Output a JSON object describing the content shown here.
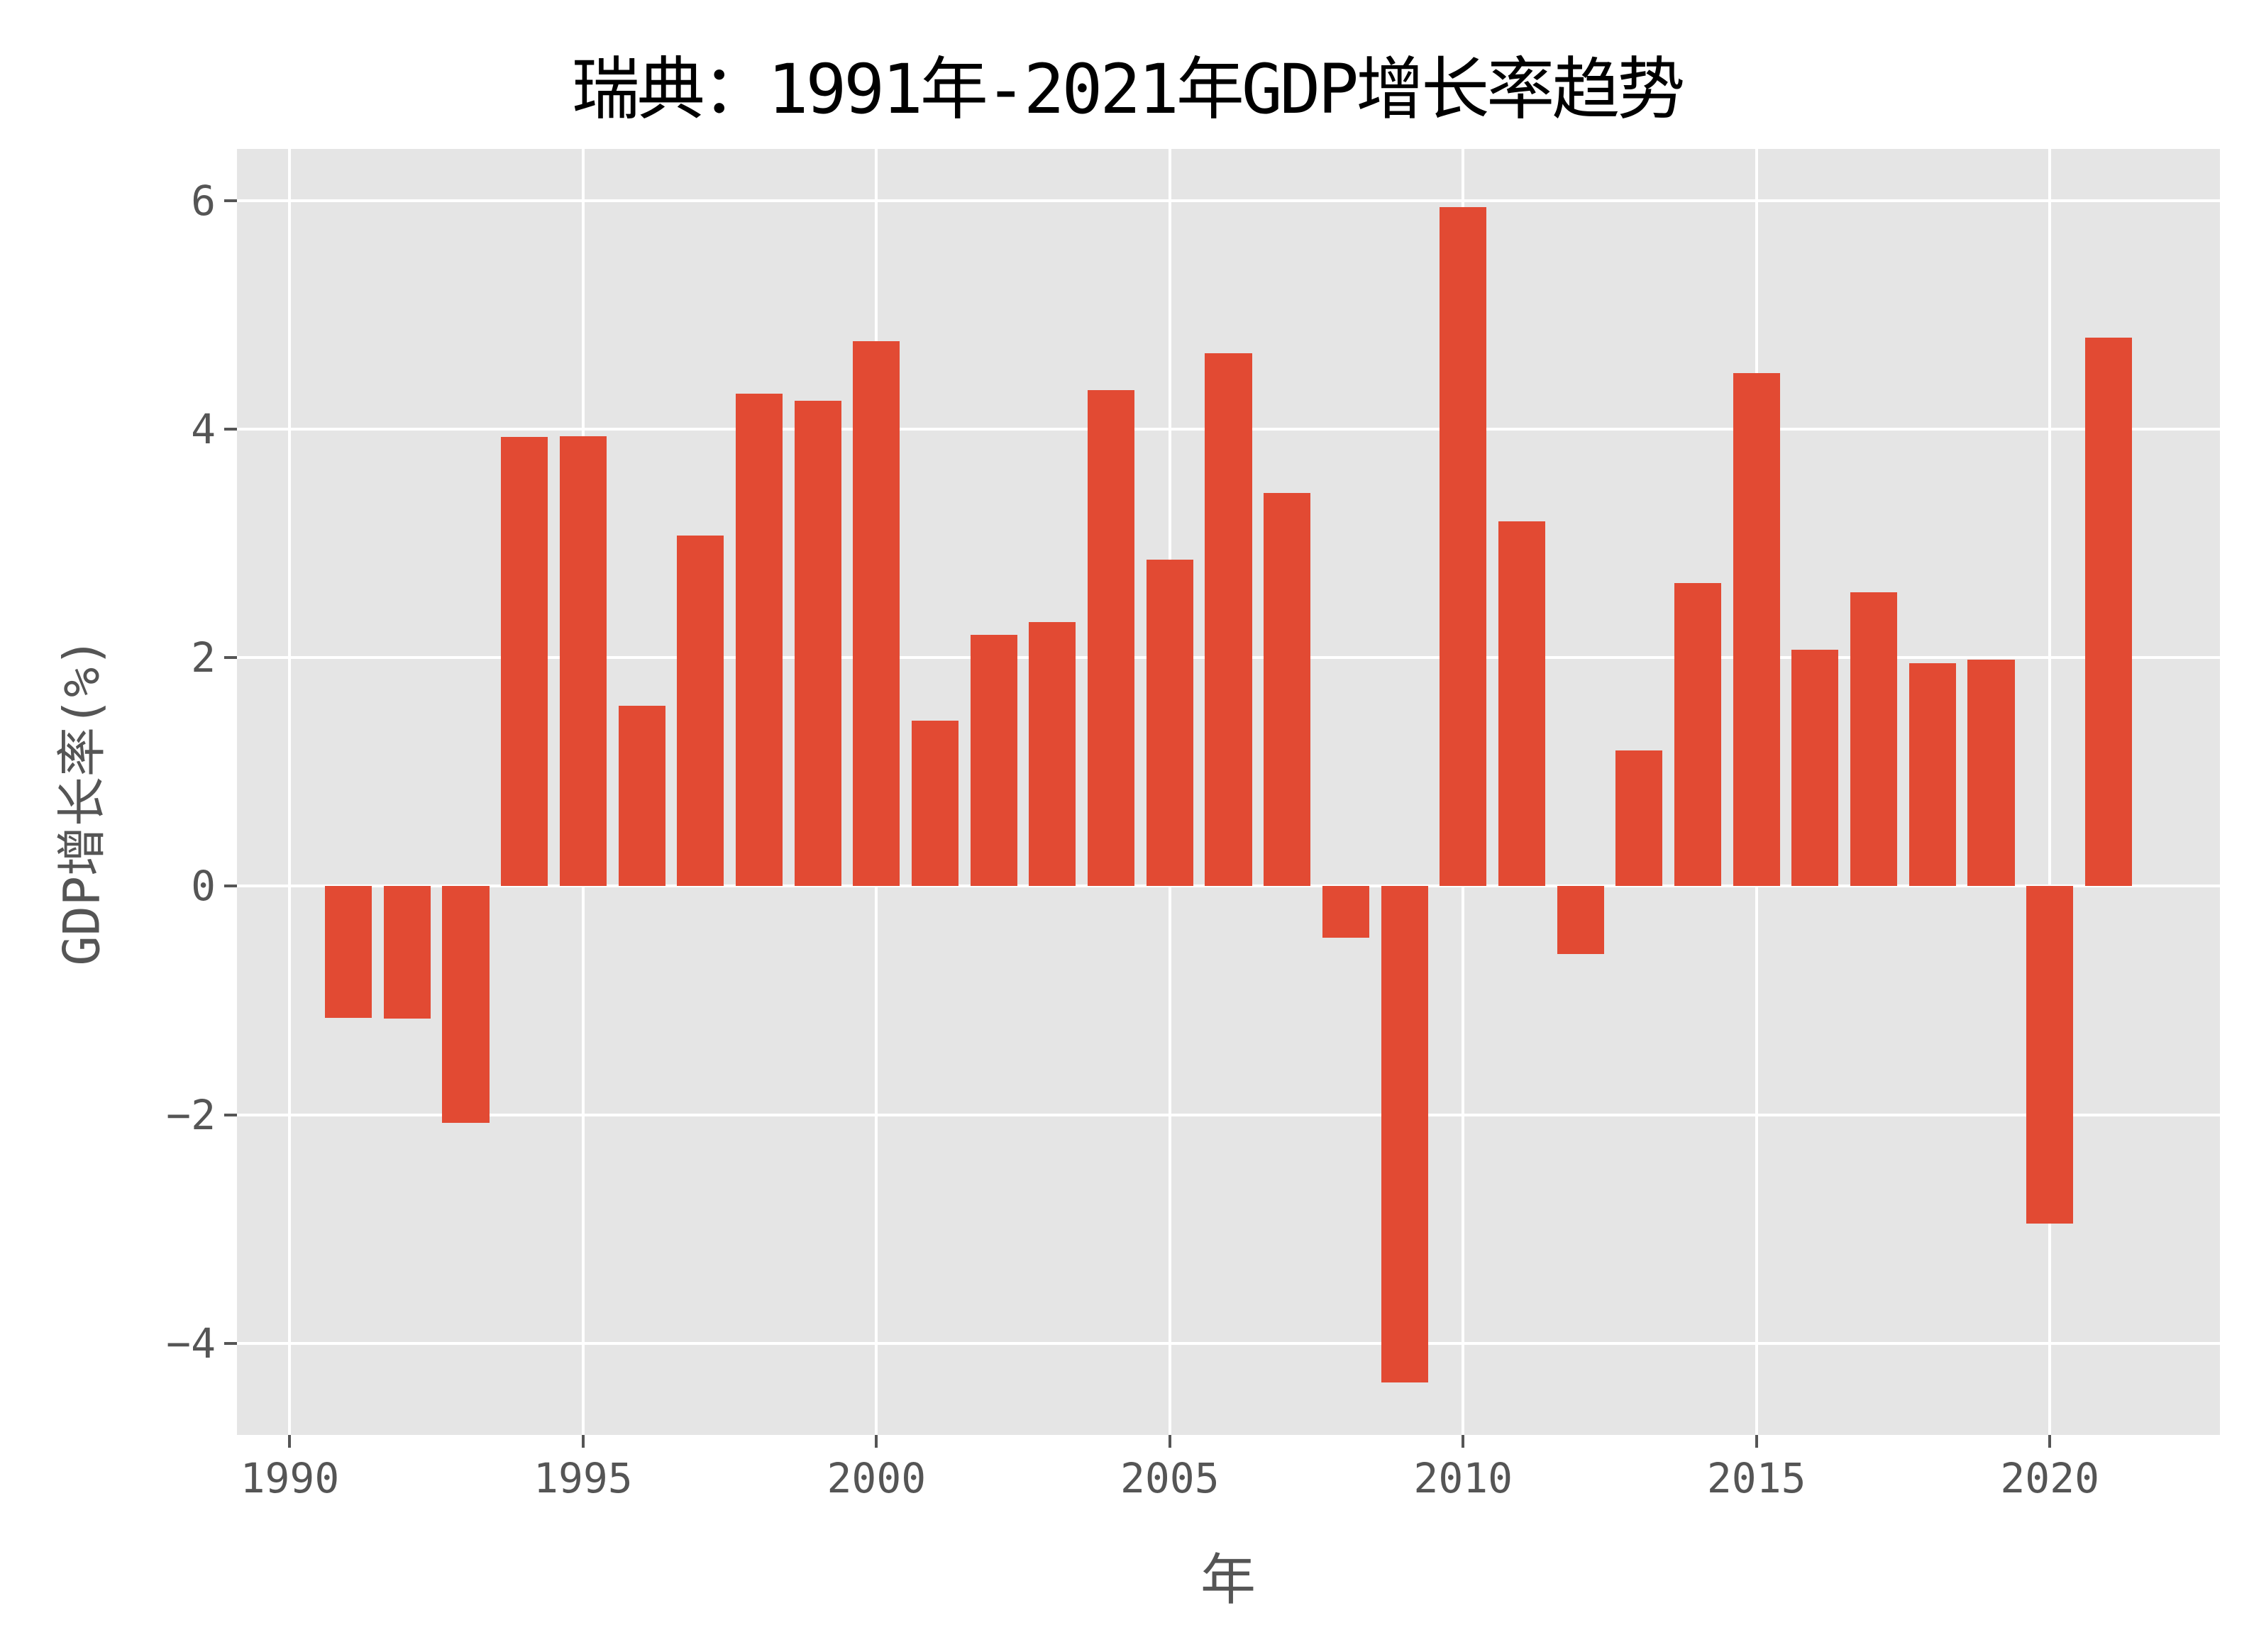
{
  "chart_data": {
    "type": "bar",
    "title": "瑞典：1991年-2021年GDP增长率趋势",
    "xlabel": "年",
    "ylabel": "GDP增长率(%)",
    "x": [
      1991,
      1992,
      1993,
      1994,
      1995,
      1996,
      1997,
      1998,
      1999,
      2000,
      2001,
      2002,
      2003,
      2004,
      2005,
      2006,
      2007,
      2008,
      2009,
      2010,
      2011,
      2012,
      2013,
      2014,
      2015,
      2016,
      2017,
      2018,
      2019,
      2020,
      2021
    ],
    "values": [
      -1.15,
      -1.16,
      -2.07,
      3.93,
      3.94,
      1.58,
      3.07,
      4.31,
      4.25,
      4.77,
      1.45,
      2.2,
      2.31,
      4.34,
      2.86,
      4.66,
      3.44,
      -0.45,
      -4.34,
      5.94,
      3.19,
      -0.59,
      1.19,
      2.65,
      4.49,
      2.07,
      2.57,
      1.95,
      1.98,
      -2.95,
      4.8
    ],
    "xticks": [
      1990,
      1995,
      2000,
      2005,
      2010,
      2015,
      2020
    ],
    "xtick_labels": [
      "1990",
      "1995",
      "2000",
      "2005",
      "2010",
      "2015",
      "2020"
    ],
    "yticks": [
      -4,
      -2,
      0,
      2,
      4,
      6
    ],
    "ytick_labels": [
      "−4",
      "−2",
      "0",
      "2",
      "4",
      "6"
    ],
    "xlim": [
      1989.1,
      2022.9
    ],
    "ylim": [
      -4.8,
      6.45
    ],
    "grid": true,
    "bar_color": "#e24a33",
    "background_color": "#e5e5e5",
    "style": "ggplot"
  }
}
